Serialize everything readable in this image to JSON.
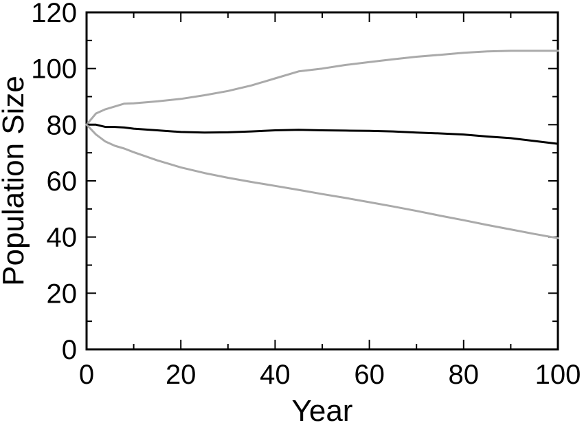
{
  "chart_data": {
    "type": "line",
    "title": "",
    "xlabel": "Year",
    "ylabel": "Population Size",
    "xlim": [
      0,
      100
    ],
    "ylim": [
      0,
      120
    ],
    "xticks": [
      0,
      20,
      40,
      60,
      80,
      100
    ],
    "yticks": [
      0,
      20,
      40,
      60,
      80,
      100,
      120
    ],
    "grid": false,
    "legend": "none",
    "series": [
      {
        "color": "#aaaaaa",
        "x": [
          0,
          2,
          4,
          6,
          8,
          10,
          15,
          20,
          25,
          30,
          35,
          40,
          45,
          50,
          55,
          60,
          65,
          70,
          75,
          80,
          85,
          90,
          95,
          100
        ],
        "y": [
          80,
          84,
          85.5,
          86.5,
          87.5,
          87.6,
          88.3,
          89.2,
          90.5,
          92,
          94,
          96.5,
          99,
          100,
          101.3,
          102.3,
          103.3,
          104.2,
          104.9,
          105.6,
          106.1,
          106.3,
          106.3,
          106.3
        ]
      },
      {
        "color": "#000000",
        "x": [
          0,
          2,
          4,
          6,
          8,
          10,
          15,
          20,
          25,
          30,
          35,
          40,
          45,
          50,
          55,
          60,
          65,
          70,
          75,
          80,
          85,
          90,
          95,
          100
        ],
        "y": [
          80,
          80,
          79.2,
          79.2,
          79,
          78.6,
          78,
          77.4,
          77.2,
          77.3,
          77.6,
          78,
          78.2,
          78,
          77.9,
          77.8,
          77.6,
          77.2,
          76.9,
          76.5,
          75.8,
          75.2,
          74.2,
          73.2
        ]
      },
      {
        "color": "#aaaaaa",
        "x": [
          0,
          2,
          4,
          6,
          8,
          10,
          15,
          20,
          25,
          30,
          35,
          40,
          45,
          50,
          55,
          60,
          65,
          70,
          75,
          80,
          85,
          90,
          95,
          100
        ],
        "y": [
          80,
          76.5,
          74,
          72.5,
          71.5,
          70.2,
          67.3,
          64.8,
          62.8,
          61.1,
          59.6,
          58.2,
          56.8,
          55.3,
          53.9,
          52.4,
          50.9,
          49.3,
          47.6,
          46,
          44.3,
          42.7,
          41.1,
          39.6
        ]
      }
    ]
  }
}
